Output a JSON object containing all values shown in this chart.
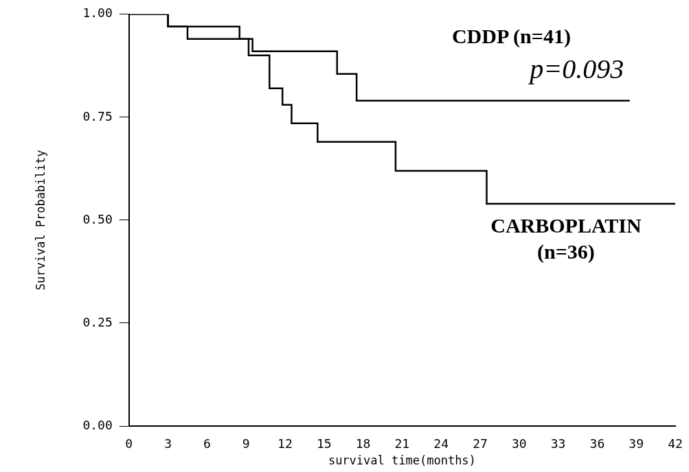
{
  "chart_data": {
    "type": "step",
    "xlabel": "survival time(months)",
    "ylabel": "Survival Probability",
    "xlim": [
      0,
      42
    ],
    "xticks": [
      0,
      3,
      6,
      9,
      12,
      15,
      18,
      21,
      24,
      27,
      30,
      33,
      36,
      39,
      42
    ],
    "ylim": [
      0,
      1
    ],
    "yticks": [
      {
        "value": 0,
        "label": "0.00"
      },
      {
        "value": 0.25,
        "label": "0.25"
      },
      {
        "value": 0.5,
        "label": "0.50"
      },
      {
        "value": 0.75,
        "label": "0.75"
      },
      {
        "value": 1,
        "label": "1.00"
      }
    ],
    "grid": false,
    "legend": false,
    "marker": "none",
    "line_style": "solid",
    "series": [
      {
        "name": "CDDP (n=41)",
        "color": "#000000",
        "x": [
          0,
          3,
          8.5,
          9.5,
          16,
          17.5,
          38.5
        ],
        "values": [
          1,
          0.97,
          0.94,
          0.91,
          0.855,
          0.79,
          0.79
        ]
      },
      {
        "name": "CARBOPLATIN (n=36)",
        "color": "#000000",
        "x": [
          0,
          3,
          4.5,
          9.2,
          10.8,
          11.8,
          12.5,
          14.5,
          20.5,
          27.5,
          42
        ],
        "values": [
          1,
          0.97,
          0.94,
          0.9,
          0.82,
          0.78,
          0.735,
          0.69,
          0.62,
          0.54,
          0.54
        ]
      }
    ],
    "annotations": [
      "p=0.093"
    ]
  }
}
